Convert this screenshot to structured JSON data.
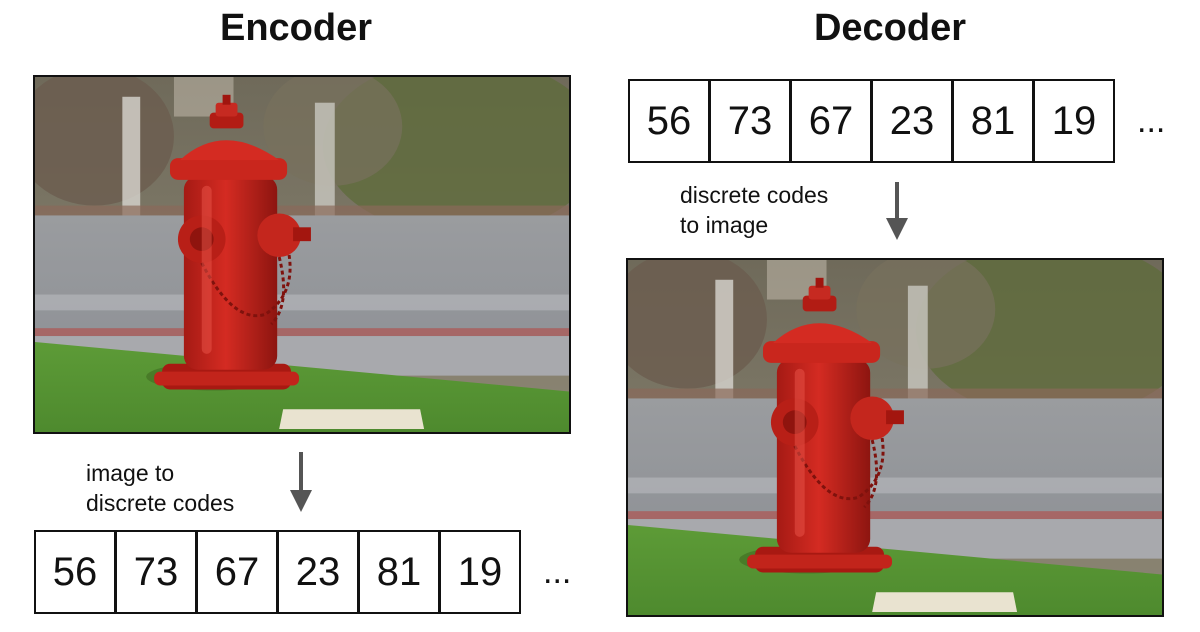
{
  "encoder": {
    "title": "Encoder",
    "arrow_label": "image to\ndiscrete codes",
    "codes": [
      "56",
      "73",
      "67",
      "23",
      "81",
      "19"
    ],
    "ellipsis": "..."
  },
  "decoder": {
    "title": "Decoder",
    "arrow_label": "discrete codes\nto image",
    "codes": [
      "56",
      "73",
      "67",
      "23",
      "81",
      "19"
    ],
    "ellipsis": "..."
  },
  "colors": {
    "hydrant_red": "#d42b22",
    "grass": "#4e8a2e",
    "road": "#8e9196",
    "arrow": "#555555"
  }
}
